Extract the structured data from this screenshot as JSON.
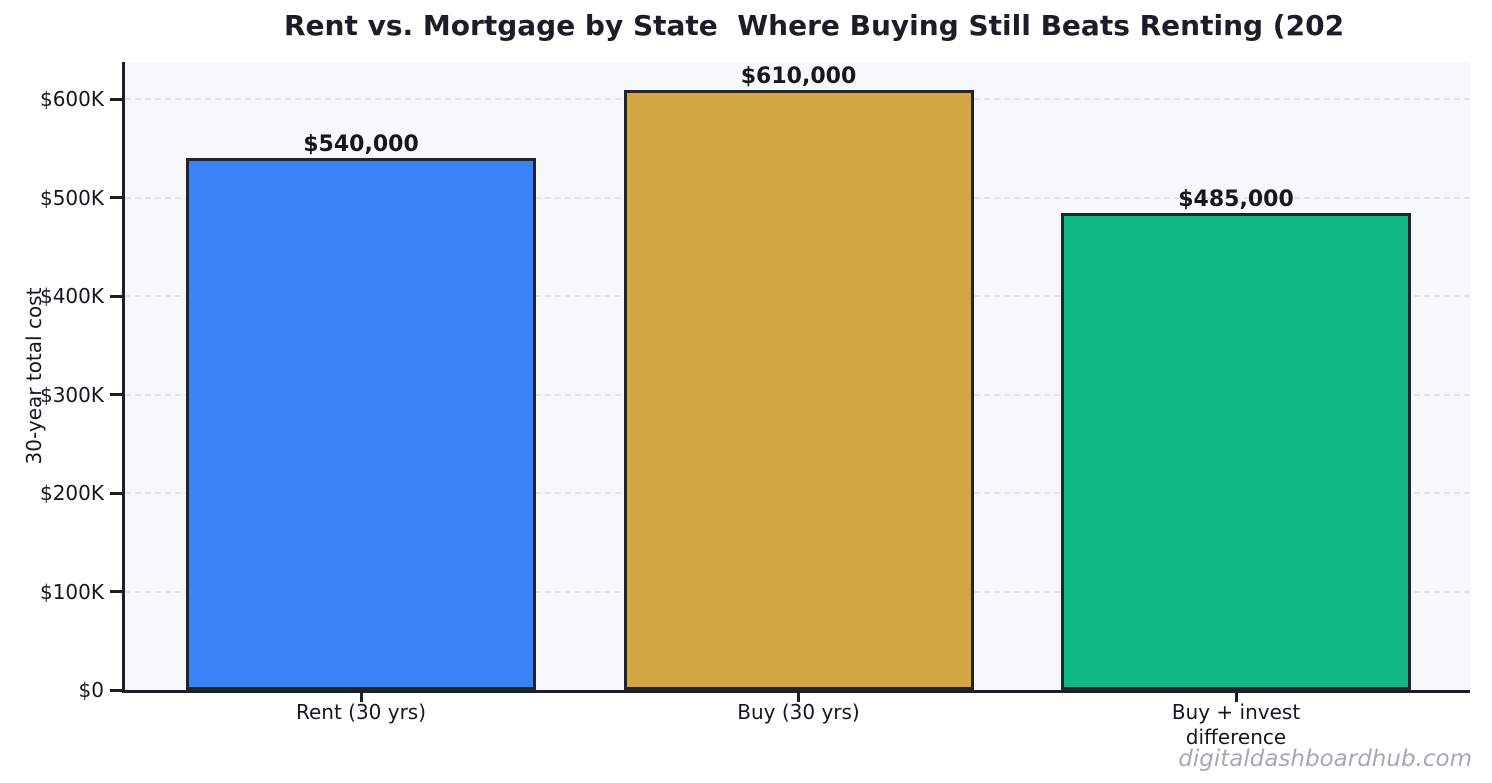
{
  "chart_data": {
    "type": "bar",
    "title": "Rent vs. Mortgage by State  Where Buying Still Beats Renting (202",
    "title_truncated": true,
    "categories": [
      "Rent (30 yrs)",
      "Buy (30 yrs)",
      "Buy + invest\ndifference"
    ],
    "values": [
      540000,
      610000,
      485000
    ],
    "value_labels": [
      "$540,000",
      "$610,000",
      "$485,000"
    ],
    "xlabel": "",
    "ylabel": "30-year total cost",
    "yticks": {
      "values": [
        0,
        100000,
        200000,
        300000,
        400000,
        500000,
        600000
      ],
      "labels": [
        "$0",
        "$100K",
        "$200K",
        "$300K",
        "$400K",
        "$500K",
        "$600K"
      ]
    },
    "ylim": [
      0,
      638000
    ],
    "grid": "horizontal",
    "grid_style": "dashed",
    "legend": "none",
    "watermark": "digitaldashboardhub.com",
    "colors": {
      "bars": [
        "#3b82f6",
        "#d2a643",
        "#10b981"
      ],
      "bar_edge": "#22242c",
      "plot_bg": "#f7f8fa",
      "grid": "#e2e4e9",
      "text": "#15171c",
      "title": "#1b1e28",
      "watermark": "#a3aab6"
    }
  }
}
